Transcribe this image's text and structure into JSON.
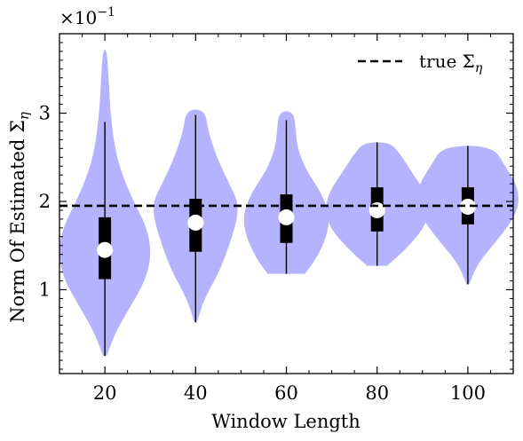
{
  "chart_data": {
    "type": "violin",
    "title": "",
    "xlabel": "Window Length",
    "ylabel_main": "Norm Of Estimated Σ",
    "ylabel_sub": "η",
    "y_exponent_prefix": "×10",
    "y_exponent_power": "−1",
    "xlim": [
      10,
      110
    ],
    "ylim": [
      0.05,
      3.9
    ],
    "x_ticks": [
      20,
      40,
      60,
      80,
      100
    ],
    "y_ticks": [
      1,
      2,
      3
    ],
    "grid": false,
    "legend": {
      "placement": "top-right",
      "entries": [
        {
          "label_main": "true Σ",
          "label_sub": "η",
          "style": "dashed",
          "color": "#000000"
        }
      ]
    },
    "reference_line": {
      "y": 1.95,
      "style": "dashed",
      "color": "#000000"
    },
    "violin_color": "#b3b3ff",
    "series": [
      {
        "x": 20,
        "min": 0.25,
        "q1": 1.12,
        "median": 1.45,
        "q3": 1.82,
        "max": 2.9,
        "profile": [
          [
            0.25,
            0.3
          ],
          [
            0.5,
            1.6
          ],
          [
            0.8,
            4.0
          ],
          [
            1.1,
            6.5
          ],
          [
            1.4,
            7.5
          ],
          [
            1.7,
            6.8
          ],
          [
            2.0,
            4.6
          ],
          [
            2.3,
            2.8
          ],
          [
            2.6,
            1.6
          ],
          [
            3.0,
            0.9
          ],
          [
            3.4,
            0.6
          ],
          [
            3.72,
            0.3
          ]
        ]
      },
      {
        "x": 40,
        "min": 0.63,
        "q1": 1.43,
        "median": 1.76,
        "q3": 2.03,
        "max": 2.98,
        "profile": [
          [
            0.63,
            0.2
          ],
          [
            0.9,
            1.4
          ],
          [
            1.2,
            3.8
          ],
          [
            1.5,
            5.4
          ],
          [
            1.8,
            6.7
          ],
          [
            2.0,
            6.8
          ],
          [
            2.2,
            5.4
          ],
          [
            2.5,
            3.4
          ],
          [
            2.8,
            2.0
          ],
          [
            3.04,
            1.5
          ]
        ]
      },
      {
        "x": 60,
        "min": 1.18,
        "q1": 1.53,
        "median": 1.82,
        "q3": 2.08,
        "max": 2.92,
        "profile": [
          [
            1.18,
            3.0
          ],
          [
            1.35,
            4.8
          ],
          [
            1.6,
            6.5
          ],
          [
            1.85,
            7.0
          ],
          [
            2.1,
            5.6
          ],
          [
            2.35,
            3.2
          ],
          [
            2.6,
            1.8
          ],
          [
            2.8,
            1.5
          ],
          [
            3.02,
            1.2
          ]
        ]
      },
      {
        "x": 80,
        "min": 1.27,
        "q1": 1.66,
        "median": 1.9,
        "q3": 2.16,
        "max": 2.67,
        "profile": [
          [
            1.27,
            1.6
          ],
          [
            1.45,
            4.5
          ],
          [
            1.7,
            7.6
          ],
          [
            1.9,
            8.3
          ],
          [
            2.1,
            7.8
          ],
          [
            2.35,
            5.4
          ],
          [
            2.55,
            3.6
          ],
          [
            2.67,
            2.0
          ]
        ]
      },
      {
        "x": 100,
        "min": 1.06,
        "q1": 1.74,
        "median": 1.94,
        "q3": 2.16,
        "max": 2.63,
        "profile": [
          [
            1.06,
            0.2
          ],
          [
            1.3,
            1.6
          ],
          [
            1.55,
            4.6
          ],
          [
            1.8,
            7.3
          ],
          [
            2.0,
            8.3
          ],
          [
            2.2,
            7.8
          ],
          [
            2.4,
            6.0
          ],
          [
            2.63,
            4.0
          ]
        ]
      }
    ]
  }
}
